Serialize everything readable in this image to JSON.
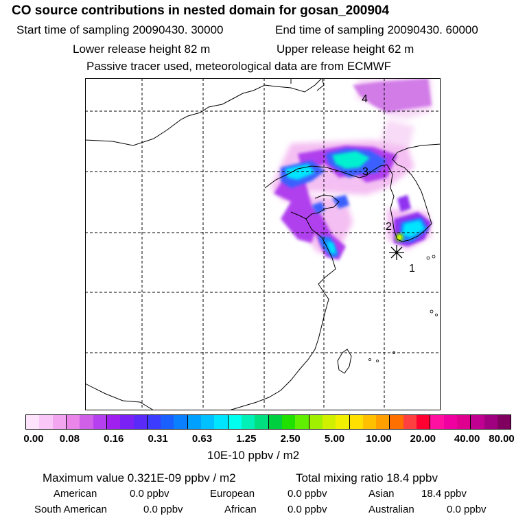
{
  "title": "CO  source contributions in nested domain for gosan_200904",
  "start_label": "Start time of sampling 20090430. 30000",
  "end_label": "End time of sampling 20090430. 60000",
  "lower_label": "Lower release height   82 m",
  "upper_label": "Upper release height   62 m",
  "tracer_note": "Passive tracer used, meteorological data are from ECMWF",
  "markers": [
    "1",
    "2",
    "3",
    "4"
  ],
  "colorbar": {
    "colors": [
      "#fde4fc",
      "#f9c8f8",
      "#f3a6f0",
      "#ea86ea",
      "#d060e8",
      "#b540f0",
      "#a020f0",
      "#7a22f5",
      "#5a2af8",
      "#3c3cff",
      "#1a60ff",
      "#0a80ff",
      "#00a0ff",
      "#00c0ff",
      "#00e5ff",
      "#00ffee",
      "#00f0b8",
      "#00e080",
      "#00d040",
      "#20e000",
      "#60ef00",
      "#a0f000",
      "#d0f000",
      "#f0f000",
      "#ffe000",
      "#ffc000",
      "#ffa000",
      "#ff7000",
      "#ff4040",
      "#ff0030",
      "#ff10a0",
      "#f000a0",
      "#e00090",
      "#c00090",
      "#a00080",
      "#800060"
    ],
    "tick_labels": [
      "0.00",
      "0.08",
      "0.16",
      "0.31",
      "0.63",
      "1.25",
      "2.50",
      "5.00",
      "10.00",
      "20.00",
      "40.00",
      "80.00"
    ],
    "units": "10E-10 ppbv / m2"
  },
  "stats": {
    "max_value": "Maximum value  0.321E-09 ppbv / m2",
    "total_mixing": "Total mixing ratio       18.4 ppbv",
    "american_label": "American",
    "american_value": "0.0 ppbv",
    "european_label": "European",
    "european_value": "0.0 ppbv",
    "asian_label": "Asian",
    "asian_value": "18.4 ppbv",
    "south_american_label": "South American",
    "south_american_value": "0.0 ppbv",
    "african_label": "African",
    "african_value": "0.0 ppbv",
    "australian_label": "Australian",
    "australian_value": "0.0 ppbv"
  }
}
